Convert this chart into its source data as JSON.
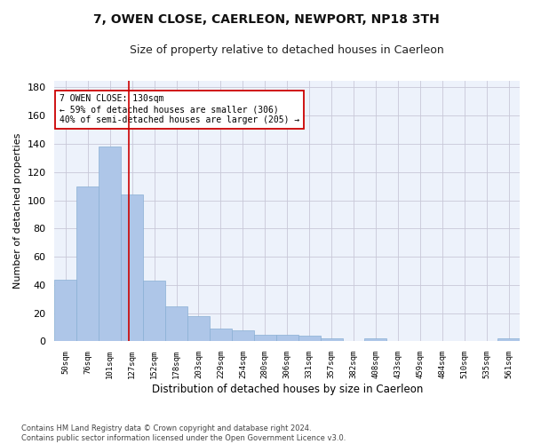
{
  "title": "7, OWEN CLOSE, CAERLEON, NEWPORT, NP18 3TH",
  "subtitle": "Size of property relative to detached houses in Caerleon",
  "xlabel": "Distribution of detached houses by size in Caerleon",
  "ylabel": "Number of detached properties",
  "categories": [
    "50sqm",
    "76sqm",
    "101sqm",
    "127sqm",
    "152sqm",
    "178sqm",
    "203sqm",
    "229sqm",
    "254sqm",
    "280sqm",
    "306sqm",
    "331sqm",
    "357sqm",
    "382sqm",
    "408sqm",
    "433sqm",
    "459sqm",
    "484sqm",
    "510sqm",
    "535sqm",
    "561sqm"
  ],
  "values": [
    44,
    110,
    138,
    104,
    43,
    25,
    18,
    9,
    8,
    5,
    5,
    4,
    2,
    0,
    2,
    0,
    0,
    0,
    0,
    0,
    2
  ],
  "bar_color": "#aec6e8",
  "bar_edge_color": "#89afd4",
  "vline_x": 2.85,
  "vline_color": "#cc0000",
  "annotation_text": "7 OWEN CLOSE: 130sqm\n← 59% of detached houses are smaller (306)\n40% of semi-detached houses are larger (205) →",
  "annotation_box_color": "#ffffff",
  "annotation_box_edge": "#cc0000",
  "ylim": [
    0,
    185
  ],
  "yticks": [
    0,
    20,
    40,
    60,
    80,
    100,
    120,
    140,
    160,
    180
  ],
  "background_color": "#ffffff",
  "plot_bg_color": "#edf2fb",
  "grid_color": "#c8c8d8",
  "title_fontsize": 10,
  "subtitle_fontsize": 9,
  "footnote": "Contains HM Land Registry data © Crown copyright and database right 2024.\nContains public sector information licensed under the Open Government Licence v3.0."
}
